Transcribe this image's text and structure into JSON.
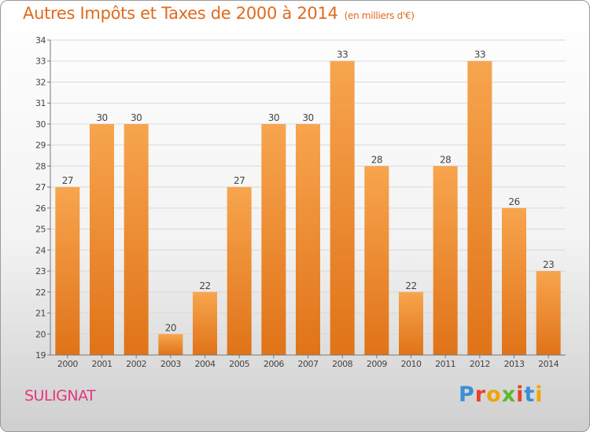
{
  "title": "Autres Impôts et Taxes de 2000 à 2014",
  "subtitle": "(en milliers d'€)",
  "location": "SULIGNAT",
  "logo": {
    "letters": [
      "P",
      "r",
      "o",
      "x",
      "i",
      "t",
      "i"
    ],
    "colors": [
      "#3a8fd6",
      "#e5432b",
      "#f0a500",
      "#5fb82e",
      "#e5432b",
      "#3a8fd6",
      "#f0a500"
    ]
  },
  "colors": {
    "bar_top": "#f7a54e",
    "bar_bottom": "#e07318",
    "accent": "#e06a1e"
  },
  "chart_data": {
    "type": "bar",
    "title": "Autres Impôts et Taxes de 2000 à 2014",
    "subtitle": "(en milliers d'€)",
    "xlabel": "",
    "ylabel": "",
    "categories": [
      "2000",
      "2001",
      "2002",
      "2003",
      "2004",
      "2005",
      "2006",
      "2007",
      "2008",
      "2009",
      "2010",
      "2011",
      "2012",
      "2013",
      "2014"
    ],
    "values": [
      27,
      30,
      30,
      20,
      22,
      27,
      30,
      30,
      33,
      28,
      22,
      28,
      33,
      26,
      23
    ],
    "ylim": [
      19,
      34
    ],
    "yticks": [
      "19",
      "20",
      "21",
      "22",
      "23",
      "24",
      "25",
      "26",
      "27",
      "28",
      "29",
      "30",
      "31",
      "32",
      "33",
      "34"
    ],
    "grid": true,
    "legend": "none"
  }
}
